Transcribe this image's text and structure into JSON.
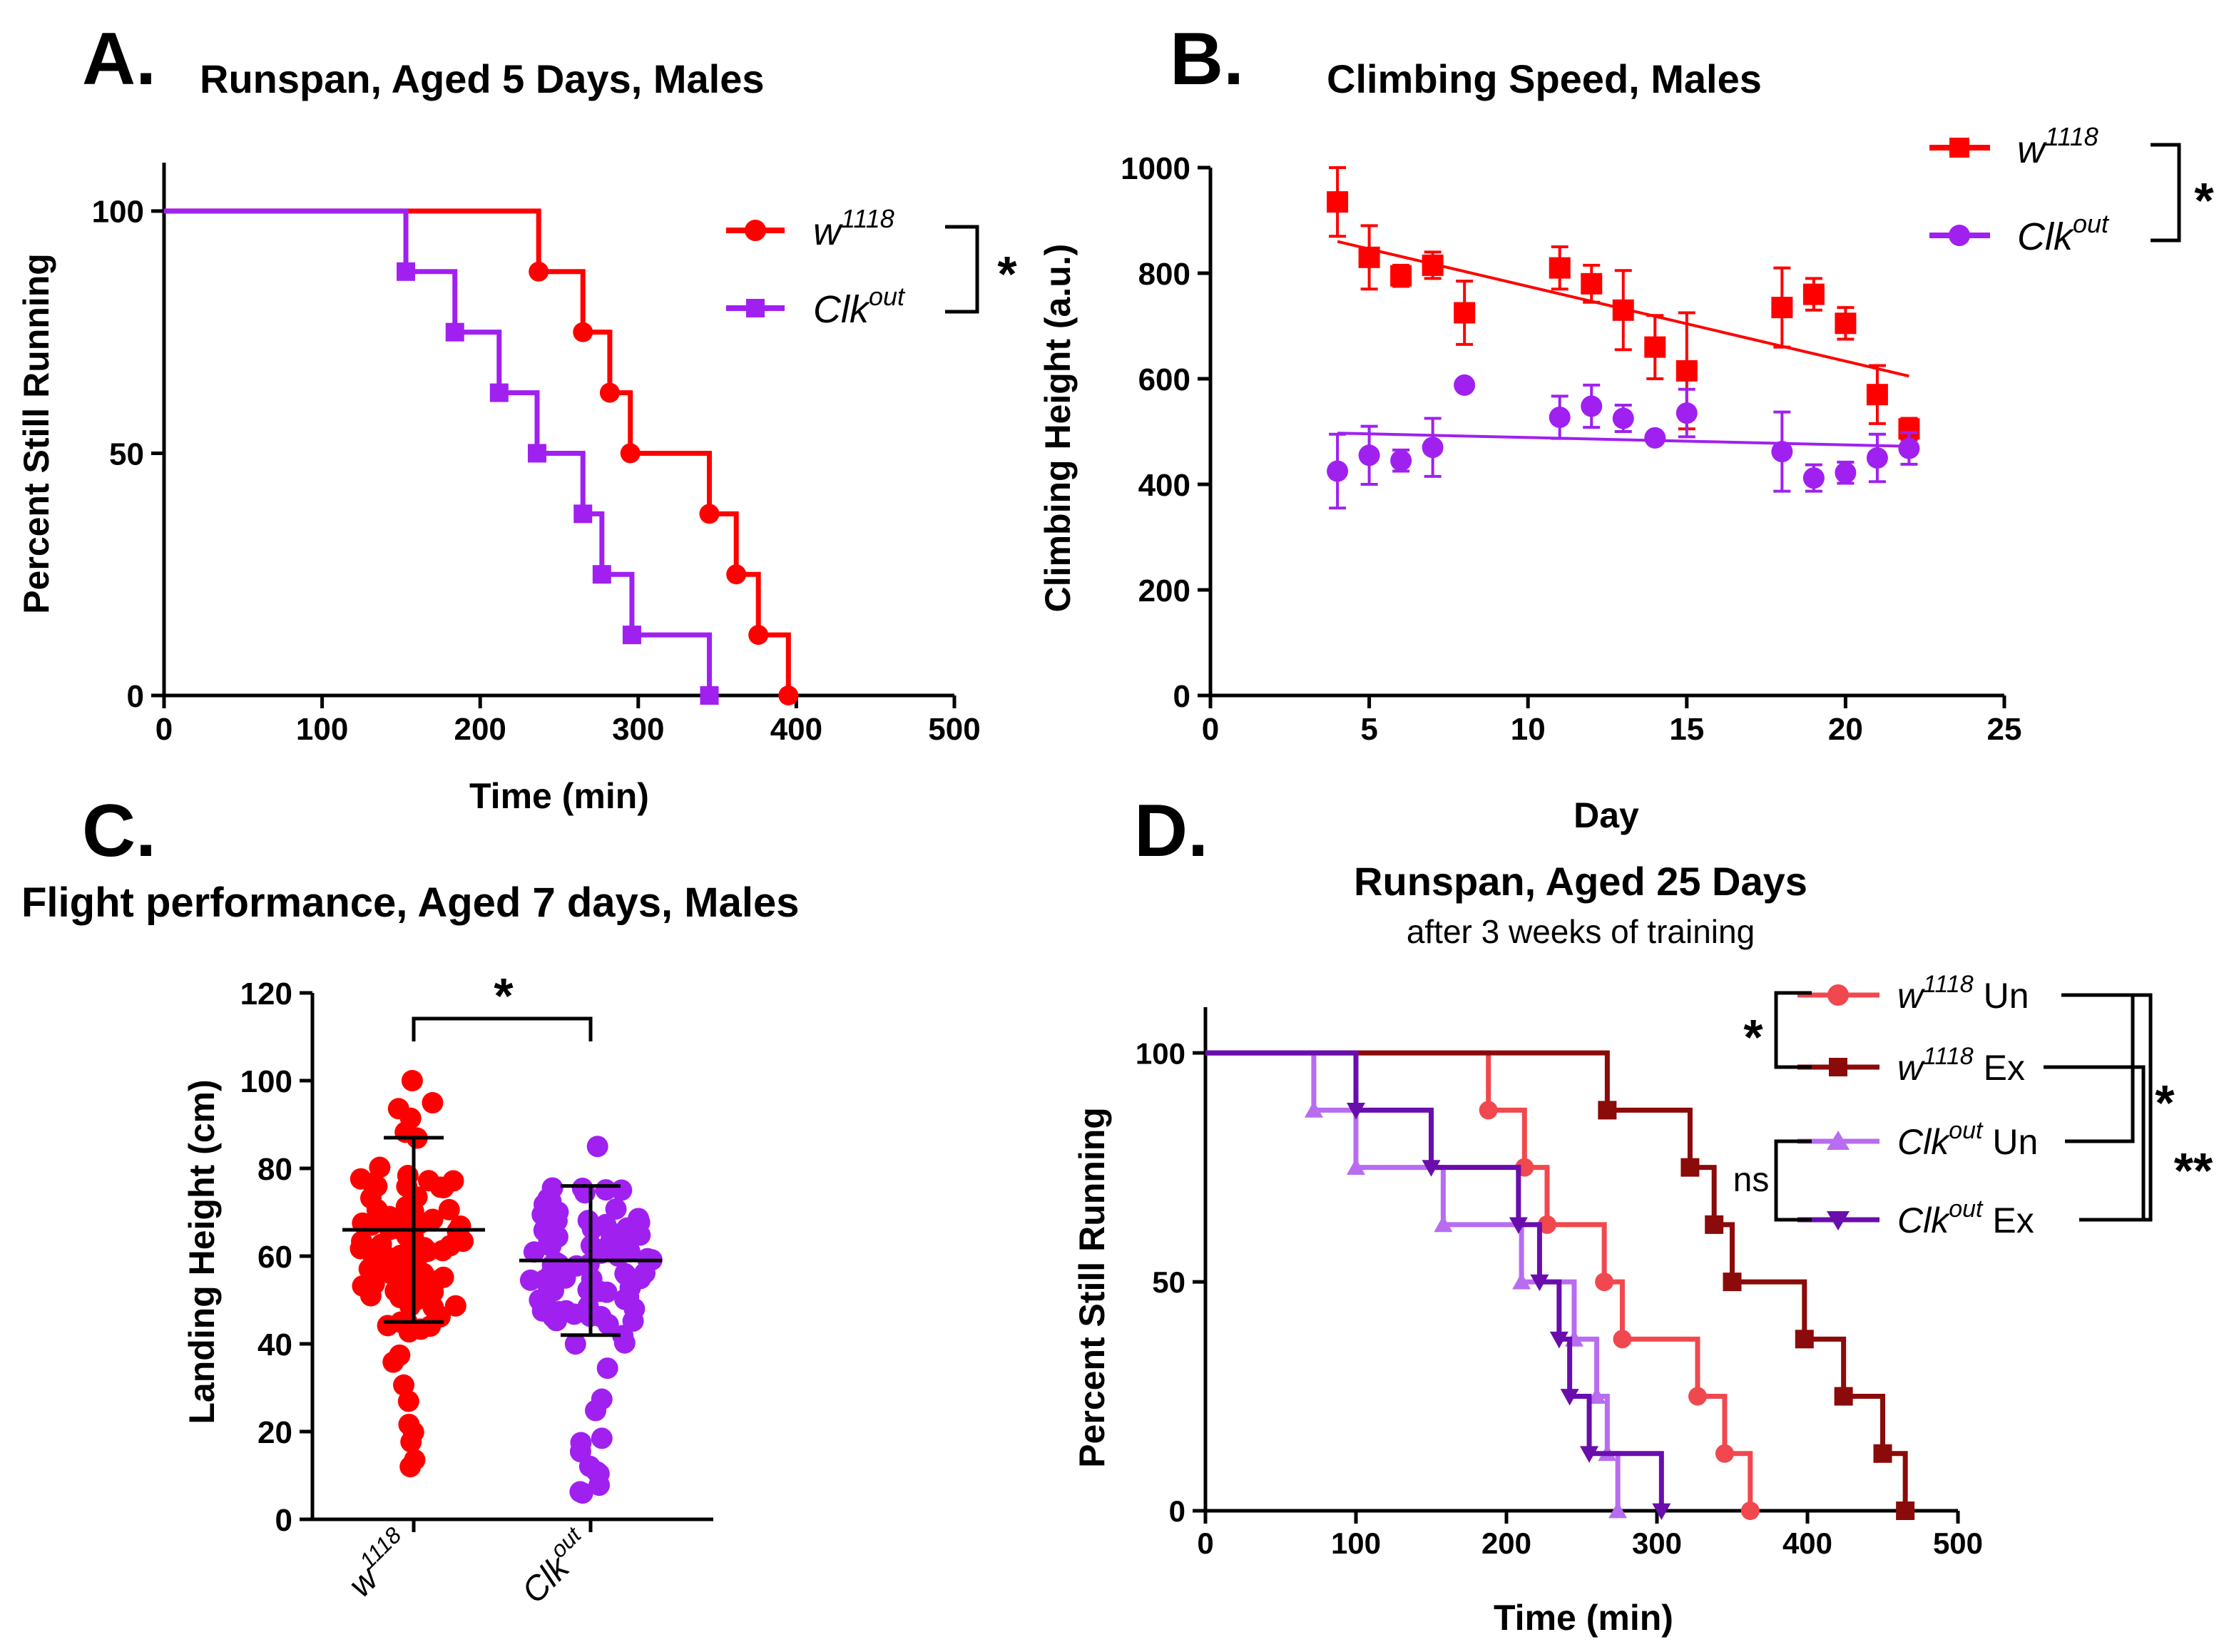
{
  "colors": {
    "w1118": "#ff0000",
    "clkout": "#a020f0",
    "w_un": "#f0484e",
    "w_ex": "#8b0a0a",
    "c_un": "#b86cf0",
    "c_ex": "#6a0dad",
    "axis": "#000000"
  },
  "panelA": {
    "letter": "A.",
    "title": "Runspan, Aged 5 Days, Males",
    "sig": "*",
    "legend": [
      {
        "base": "w",
        "sup": "1118"
      },
      {
        "base": "Clk",
        "sup": "out"
      }
    ]
  },
  "panelB": {
    "letter": "B.",
    "title": "Climbing Speed, Males",
    "sig": "*",
    "legend": [
      {
        "base": "w",
        "sup": "1118"
      },
      {
        "base": "Clk",
        "sup": "out"
      }
    ]
  },
  "panelC": {
    "letter": "C.",
    "title": "Flight performance, Aged 7 days, Males",
    "sig": "*",
    "xticks": [
      {
        "base": "w",
        "sup": "1118"
      },
      {
        "base": "Clk",
        "sup": "out"
      }
    ]
  },
  "panelD": {
    "letter": "D.",
    "title": "Runspan, Aged 25 Days",
    "subtitle": "after 3 weeks of training",
    "legend": [
      {
        "base": "w",
        "sup": "1118",
        "tail": " Un"
      },
      {
        "base": "w",
        "sup": "1118",
        "tail": " Ex"
      },
      {
        "base": "Clk",
        "sup": "out",
        "tail": " Un"
      },
      {
        "base": "Clk",
        "sup": "out",
        "tail": " Ex"
      }
    ],
    "sig_w": "*",
    "sig_ns": "ns",
    "sig_ex": "*",
    "sig_outer": "**"
  },
  "chart_data": [
    {
      "id": "A",
      "type": "line",
      "subtype": "kaplan-meier step",
      "title": "Runspan, Aged 5 Days, Males",
      "xlabel": "Time (min)",
      "ylabel": "Percent Still Running",
      "xlim": [
        0,
        500
      ],
      "ylim": [
        0,
        110
      ],
      "xticks": [
        0,
        100,
        200,
        300,
        400,
        500
      ],
      "yticks": [
        0,
        50,
        100
      ],
      "series": [
        {
          "name": "w1118",
          "marker": "circle",
          "x": [
            0,
            237,
            265,
            282,
            295,
            345,
            362,
            376,
            395
          ],
          "y": [
            100,
            87.5,
            75,
            62.5,
            50,
            37.5,
            25,
            12.5,
            0
          ]
        },
        {
          "name": "Clkout",
          "marker": "square",
          "x": [
            0,
            153,
            184,
            212,
            236,
            265,
            277,
            296,
            345
          ],
          "y": [
            100,
            87.5,
            75,
            62.5,
            50,
            37.5,
            25,
            12.5,
            0
          ]
        }
      ],
      "annotation": "*"
    },
    {
      "id": "B",
      "type": "scatter",
      "title": "Climbing Speed, Males",
      "xlabel": "Day",
      "ylabel": "Climbing Height (a.u.)",
      "xlim": [
        0,
        25
      ],
      "ylim": [
        0,
        1000
      ],
      "xticks": [
        0,
        5,
        10,
        15,
        20,
        25
      ],
      "yticks": [
        0,
        200,
        400,
        600,
        800,
        1000
      ],
      "series": [
        {
          "name": "w1118",
          "marker": "square",
          "x": [
            4,
            5,
            6,
            7,
            8,
            11,
            12,
            13,
            14,
            15,
            18,
            19,
            20,
            21,
            22
          ],
          "y": [
            935,
            830,
            795,
            815,
            725,
            810,
            780,
            730,
            660,
            615,
            735,
            760,
            705,
            570,
            505
          ],
          "err": [
            65,
            60,
            20,
            25,
            60,
            40,
            35,
            75,
            60,
            110,
            75,
            30,
            30,
            55,
            20
          ],
          "fit": {
            "x": [
              4,
              22
            ],
            "y": [
              860,
              605
            ]
          }
        },
        {
          "name": "Clkout",
          "marker": "circle",
          "x": [
            4,
            5,
            6,
            7,
            8,
            11,
            12,
            13,
            14,
            15,
            18,
            19,
            20,
            21,
            22
          ],
          "y": [
            425,
            455,
            445,
            470,
            588,
            527,
            548,
            525,
            488,
            535,
            462,
            412,
            422,
            450,
            468
          ],
          "err": [
            70,
            55,
            20,
            55,
            0,
            40,
            40,
            25,
            0,
            45,
            75,
            25,
            20,
            45,
            30
          ],
          "fit": {
            "x": [
              4,
              22
            ],
            "y": [
              497,
              472
            ]
          }
        }
      ],
      "annotation": "*"
    },
    {
      "id": "C",
      "type": "scatter",
      "subtype": "dot plot with mean ± SD",
      "title": "Flight performance, Aged 7 days, Males",
      "xlabel": "",
      "ylabel": "Landing Height (cm)",
      "ylim": [
        0,
        120
      ],
      "yticks": [
        0,
        20,
        40,
        60,
        80,
        100,
        120
      ],
      "categories": [
        "w1118",
        "Clkout"
      ],
      "series": [
        {
          "name": "w1118",
          "mean": 66,
          "sd_low": 45,
          "sd_high": 87,
          "min": 12,
          "max": 100
        },
        {
          "name": "Clkout",
          "mean": 59,
          "sd_low": 42,
          "sd_high": 76,
          "min": 6,
          "max": 85
        }
      ],
      "annotation": "*"
    },
    {
      "id": "D",
      "type": "line",
      "subtype": "kaplan-meier step",
      "title": "Runspan, Aged 25 Days",
      "subtitle": "after 3 weeks of training",
      "xlabel": "Time (min)",
      "ylabel": "Percent Still Running",
      "xlim": [
        0,
        500
      ],
      "ylim": [
        0,
        110
      ],
      "xticks": [
        0,
        100,
        200,
        300,
        400,
        500
      ],
      "yticks": [
        0,
        50,
        100
      ],
      "series": [
        {
          "name": "w1118 Un",
          "marker": "circle",
          "x": [
            0,
            188,
            212,
            227,
            265,
            277,
            327,
            345,
            362
          ],
          "y": [
            100,
            87.5,
            75,
            62.5,
            50,
            37.5,
            25,
            12.5,
            0
          ]
        },
        {
          "name": "w1118 Ex",
          "marker": "square",
          "x": [
            0,
            267,
            322,
            338,
            350,
            398,
            424,
            450,
            465
          ],
          "y": [
            100,
            87.5,
            75,
            62.5,
            50,
            37.5,
            25,
            12.5,
            0
          ]
        },
        {
          "name": "Clkout Un",
          "marker": "triangle-up",
          "x": [
            0,
            72,
            100,
            158,
            210,
            245,
            260,
            267,
            274
          ],
          "y": [
            100,
            87.5,
            75,
            62.5,
            50,
            37.5,
            25,
            12.5,
            0
          ]
        },
        {
          "name": "Clkout Ex",
          "marker": "triangle-down",
          "x": [
            0,
            100,
            150,
            208,
            222,
            235,
            242,
            255,
            303
          ],
          "y": [
            100,
            87.5,
            75,
            62.5,
            50,
            37.5,
            25,
            12.5,
            0
          ]
        }
      ],
      "annotations": [
        "*",
        "ns",
        "*",
        "**"
      ]
    }
  ]
}
